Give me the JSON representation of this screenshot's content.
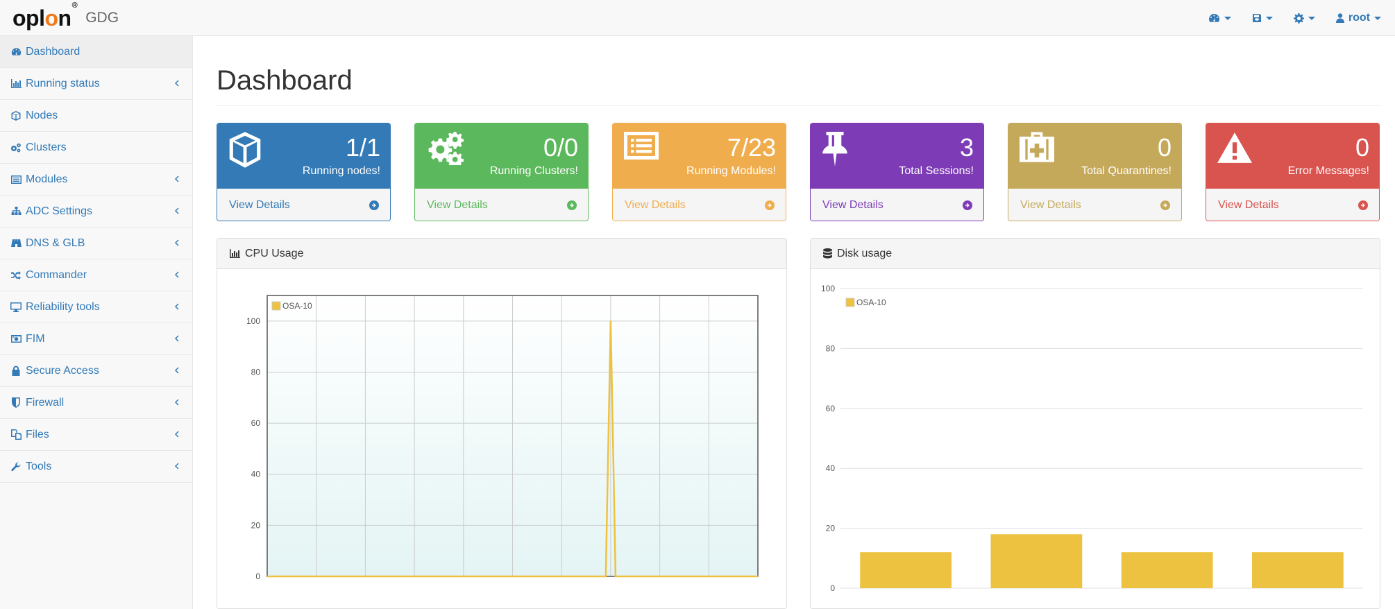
{
  "app": {
    "logo_text": "oplon",
    "subtitle": "GDG"
  },
  "topnav": {
    "items": [
      {
        "icon": "dashboard-icon"
      },
      {
        "icon": "save-icon"
      },
      {
        "icon": "gear-icon"
      },
      {
        "icon": "user-icon",
        "label": "root"
      }
    ]
  },
  "sidebar": {
    "items": [
      {
        "label": "Dashboard",
        "icon": "dashboard-icon",
        "has_submenu": false,
        "active": true
      },
      {
        "label": "Running status",
        "icon": "bar-chart-icon",
        "has_submenu": true
      },
      {
        "label": "Nodes",
        "icon": "cube-icon",
        "has_submenu": false
      },
      {
        "label": "Clusters",
        "icon": "cogs-icon",
        "has_submenu": false
      },
      {
        "label": "Modules",
        "icon": "list-alt-icon",
        "has_submenu": true
      },
      {
        "label": "ADC Settings",
        "icon": "sitemap-icon",
        "has_submenu": true
      },
      {
        "label": "DNS & GLB",
        "icon": "binoculars-icon",
        "has_submenu": true
      },
      {
        "label": "Commander",
        "icon": "random-icon",
        "has_submenu": true
      },
      {
        "label": "Reliability tools",
        "icon": "desktop-icon",
        "has_submenu": true
      },
      {
        "label": "FIM",
        "icon": "camera-icon",
        "has_submenu": true
      },
      {
        "label": "Secure Access",
        "icon": "lock-icon",
        "has_submenu": true
      },
      {
        "label": "Firewall",
        "icon": "shield-icon",
        "has_submenu": true
      },
      {
        "label": "Files",
        "icon": "files-icon",
        "has_submenu": true
      },
      {
        "label": "Tools",
        "icon": "wrench-icon",
        "has_submenu": true
      }
    ]
  },
  "main": {
    "title": "Dashboard",
    "panels": [
      {
        "value": "1/1",
        "label": "Running nodes!",
        "link": "View Details",
        "icon": "cube-icon",
        "color": "#337ab7"
      },
      {
        "value": "0/0",
        "label": "Running Clusters!",
        "link": "View Details",
        "icon": "cogs-icon",
        "color": "#5cb85c"
      },
      {
        "value": "7/23",
        "label": "Running Modules!",
        "link": "View Details",
        "icon": "list-alt-icon",
        "color": "#f0ad4e"
      },
      {
        "value": "3",
        "label": "Total Sessions!",
        "link": "View Details",
        "icon": "thumb-tack-icon",
        "color": "#7d3cb5"
      },
      {
        "value": "0",
        "label": "Total Quarantines!",
        "link": "View Details",
        "icon": "medkit-icon",
        "color": "#c5a95b"
      },
      {
        "value": "0",
        "label": "Error Messages!",
        "link": "View Details",
        "icon": "warning-icon",
        "color": "#d9534f"
      }
    ],
    "cpu_panel": {
      "title": "CPU Usage",
      "icon": "bar-chart-icon"
    },
    "disk_panel": {
      "title": "Disk usage",
      "icon": "database-icon"
    }
  },
  "chart_data": [
    {
      "type": "line",
      "title": "CPU Usage",
      "series": [
        {
          "name": "OSA-10",
          "color": "#edc240",
          "x": [
            0,
            69,
            70,
            71,
            100
          ],
          "y": [
            0,
            0,
            100,
            0,
            0
          ]
        }
      ],
      "ylim": [
        0,
        110
      ],
      "yticks": [
        0,
        20,
        40,
        60,
        80,
        100
      ],
      "grid": true,
      "legend": "top-left"
    },
    {
      "type": "bar",
      "title": "Disk usage",
      "series": [
        {
          "name": "OSA-10",
          "color": "#edc240",
          "values": [
            12,
            18,
            12,
            12
          ]
        }
      ],
      "ylim": [
        0,
        100
      ],
      "yticks": [
        0,
        20,
        40,
        60,
        80,
        100
      ],
      "grid": true,
      "legend": "top-left"
    }
  ]
}
